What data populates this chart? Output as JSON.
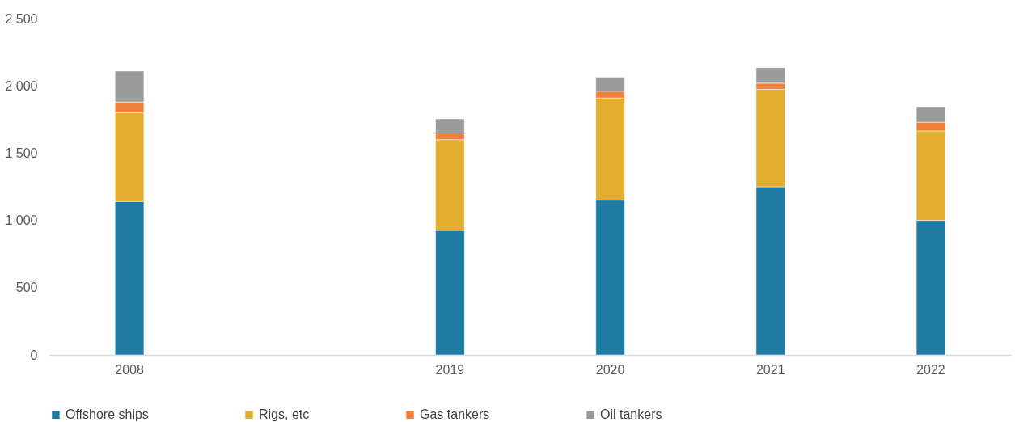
{
  "chart_data": {
    "type": "bar",
    "stacked": true,
    "categories": [
      "2008",
      null,
      "2019",
      "2020",
      "2021",
      "2022"
    ],
    "series": [
      {
        "name": "Offshore ships",
        "color": "#1f7ba3",
        "values": [
          1140,
          null,
          925,
          1150,
          1250,
          1000
        ]
      },
      {
        "name": "Rigs, etc",
        "color": "#e3ae30",
        "values": [
          660,
          null,
          675,
          760,
          725,
          665
        ]
      },
      {
        "name": "Gas tankers",
        "color": "#f07f3a",
        "values": [
          80,
          null,
          50,
          50,
          45,
          65
        ]
      },
      {
        "name": "Oil tankers",
        "color": "#9a9c9c",
        "values": [
          230,
          null,
          105,
          105,
          115,
          115
        ]
      }
    ],
    "ylim": [
      0,
      2500
    ],
    "yticks": [
      0,
      500,
      {
        "value": 1000,
        "label": "1 000"
      },
      {
        "value": 1500,
        "label": "1 500"
      },
      {
        "value": 2000,
        "label": "2 000"
      },
      {
        "value": 2500,
        "label": "2 500"
      }
    ],
    "grid": false,
    "legend": "bottom"
  }
}
